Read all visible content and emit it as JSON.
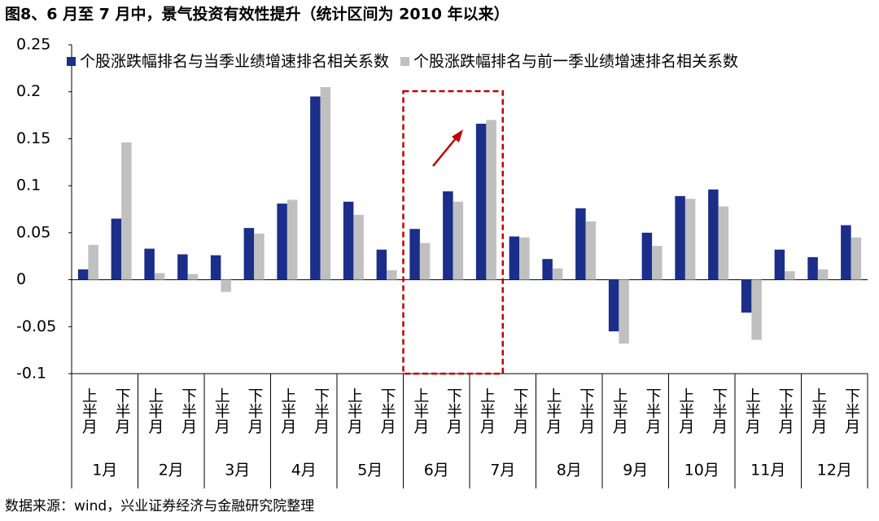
{
  "chart_data": {
    "type": "bar",
    "title": "图8、6 月至 7 月中，景气投资有效性提升（统计区间为 2010 年以来）",
    "source": "数据来源：wind，兴业证券经济与金融研究院整理",
    "categories": [
      "上半月",
      "下半月",
      "上半月",
      "下半月",
      "上半月",
      "下半月",
      "上半月",
      "下半月",
      "上半月",
      "下半月",
      "上半月",
      "下半月",
      "上半月",
      "下半月",
      "上半月",
      "下半月",
      "上半月",
      "下半月",
      "上半月",
      "下半月",
      "上半月",
      "下半月",
      "上半月",
      "下半月"
    ],
    "groups": [
      "1月",
      "2月",
      "3月",
      "4月",
      "5月",
      "6月",
      "7月",
      "8月",
      "9月",
      "10月",
      "11月",
      "12月"
    ],
    "series": [
      {
        "name": "个股涨跌幅排名与当季业绩增速排名相关系数",
        "color": "#1a2e8a",
        "values": [
          0.011,
          0.065,
          0.033,
          0.027,
          0.026,
          0.055,
          0.081,
          0.195,
          0.083,
          0.032,
          0.054,
          0.094,
          0.166,
          0.046,
          0.022,
          0.076,
          -0.055,
          0.05,
          0.089,
          0.096,
          -0.035,
          0.032,
          0.024,
          0.058
        ]
      },
      {
        "name": "个股涨跌幅排名与前一季业绩增速排名相关系数",
        "color": "#c0c0c0",
        "values": [
          0.037,
          0.146,
          0.007,
          0.006,
          -0.013,
          0.049,
          0.085,
          0.205,
          0.069,
          0.01,
          0.039,
          0.083,
          0.17,
          0.045,
          0.012,
          0.062,
          -0.068,
          0.036,
          0.086,
          0.078,
          -0.064,
          0.009,
          0.011,
          0.045
        ]
      }
    ],
    "ylim": [
      -0.1,
      0.25
    ],
    "yticks": [
      -0.1,
      -0.05,
      0,
      0.05,
      0.1,
      0.15,
      0.2,
      0.25
    ],
    "legend": "top"
  }
}
